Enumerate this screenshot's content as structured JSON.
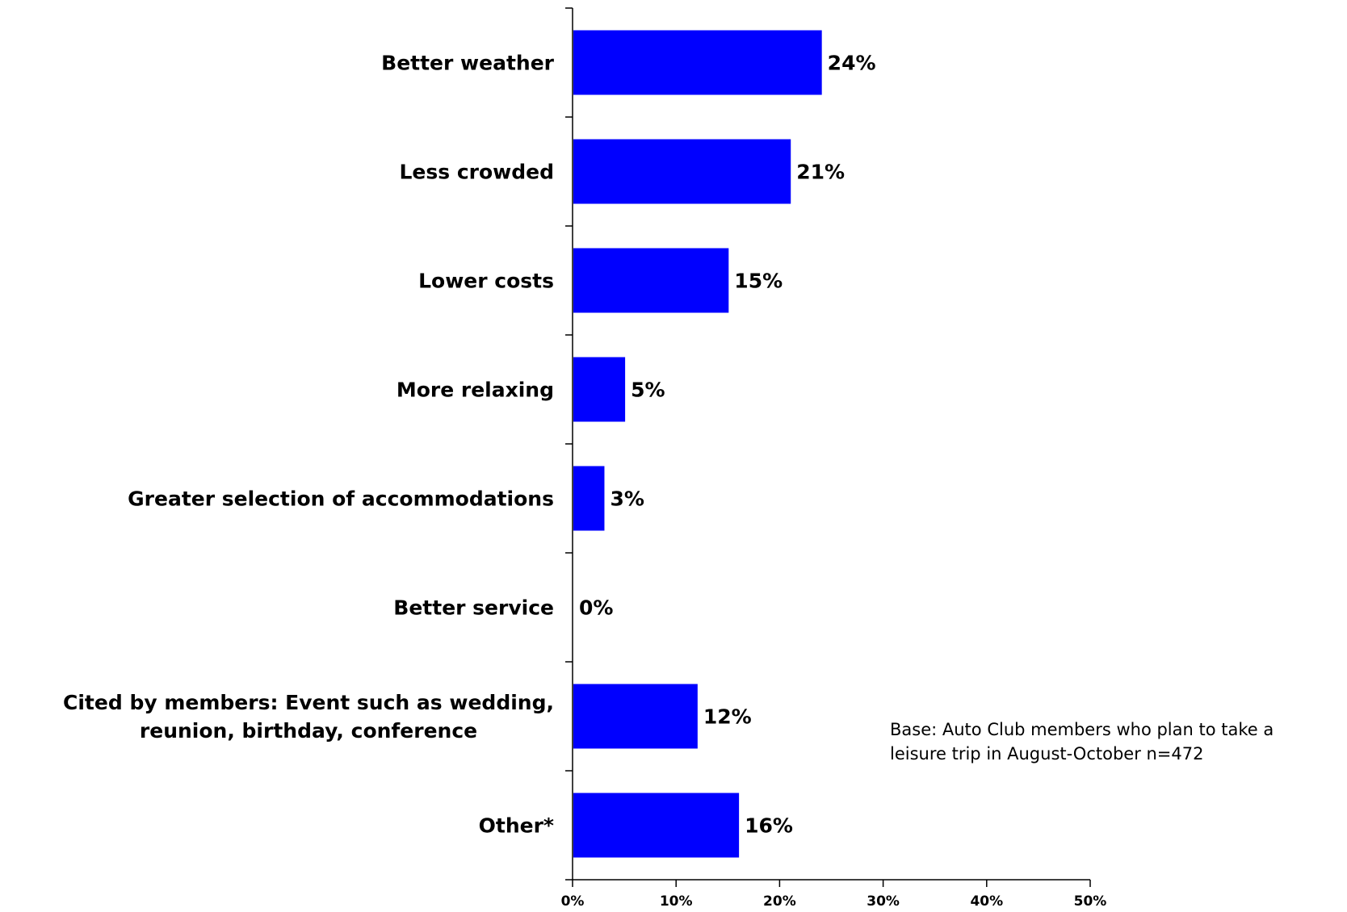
{
  "chart_data": {
    "type": "bar",
    "orientation": "horizontal",
    "categories": [
      [
        "Better weather"
      ],
      [
        "Less crowded"
      ],
      [
        "Lower costs"
      ],
      [
        "More relaxing"
      ],
      [
        "Greater selection of accommodations"
      ],
      [
        "Better service"
      ],
      [
        "Cited by members: Event such as wedding,",
        "reunion, birthday, conference"
      ],
      [
        "Other*"
      ]
    ],
    "values": [
      24,
      21,
      15,
      5,
      3,
      0,
      12,
      16
    ],
    "value_labels": [
      "24%",
      "21%",
      "15%",
      "5%",
      "3%",
      "0%",
      "12%",
      "16%"
    ],
    "xlim": [
      0,
      50
    ],
    "xticks": [
      0,
      10,
      20,
      30,
      40,
      50
    ],
    "xtick_labels": [
      "0%",
      "10%",
      "20%",
      "30%",
      "40%",
      "50%"
    ],
    "bar_color": "#0000FF",
    "grid": false,
    "legend": "none"
  },
  "note": {
    "line1": "Base: Auto Club members who plan to take a",
    "line2": "leisure trip in August-October n=472"
  }
}
